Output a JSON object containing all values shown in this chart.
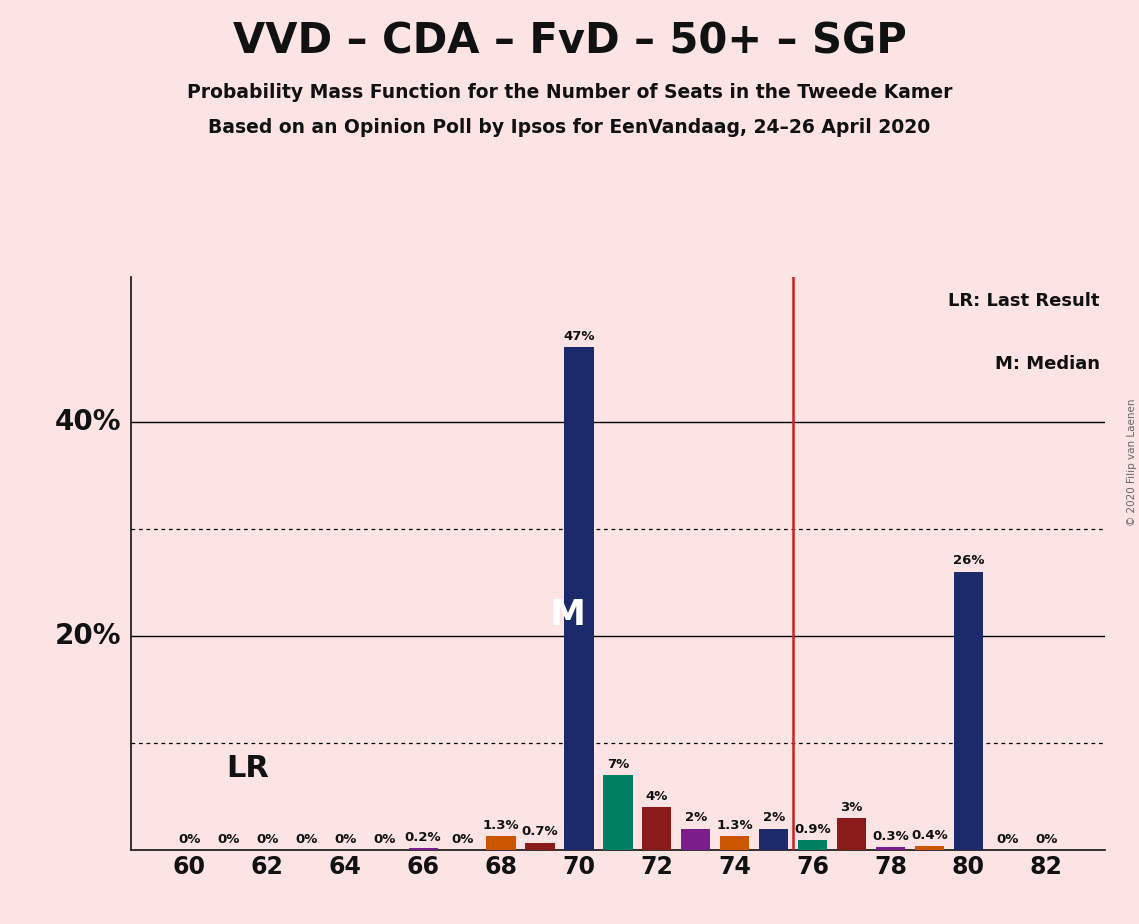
{
  "title": "VVD – CDA – FvD – 50+ – SGP",
  "subtitle1": "Probability Mass Function for the Number of Seats in the Tweede Kamer",
  "subtitle2": "Based on an Opinion Poll by Ipsos for EenVandaag, 24–26 April 2020",
  "copyright": "© 2020 Filip van Laenen",
  "legend_lr": "LR: Last Result",
  "legend_m": "M: Median",
  "background_color": "#fce4e4",
  "median": 70,
  "last_result": 75.5,
  "seats": [
    60,
    61,
    62,
    63,
    64,
    65,
    66,
    67,
    68,
    69,
    70,
    71,
    72,
    73,
    74,
    75,
    76,
    77,
    78,
    79,
    80,
    81,
    82
  ],
  "values": [
    0.0,
    0.0,
    0.0,
    0.0,
    0.0,
    0.0,
    0.002,
    0.0,
    0.013,
    0.007,
    0.47,
    0.07,
    0.04,
    0.02,
    0.013,
    0.02,
    0.009,
    0.03,
    0.003,
    0.004,
    0.26,
    0.0,
    0.0
  ],
  "bar_colors": [
    "#1c2a6b",
    "#1c2a6b",
    "#1c2a6b",
    "#1c2a6b",
    "#1c2a6b",
    "#1c2a6b",
    "#7b1e8b",
    "#1c2a6b",
    "#cc5500",
    "#8b1a1a",
    "#1c2a6b",
    "#008060",
    "#8b1a1a",
    "#7b1e8b",
    "#cc5500",
    "#1c2a6b",
    "#008060",
    "#8b1a1a",
    "#7b1e8b",
    "#cc5500",
    "#1c2a6b",
    "#1c2a6b",
    "#1c2a6b"
  ],
  "labels": [
    "0%",
    "0%",
    "0%",
    "0%",
    "0%",
    "0%",
    "0.2%",
    "0%",
    "1.3%",
    "0.7%",
    "47%",
    "7%",
    "4%",
    "2%",
    "1.3%",
    "2%",
    "0.9%",
    "3%",
    "0.3%",
    "0.4%",
    "26%",
    "0%",
    "0%"
  ],
  "xlim": [
    58.5,
    83.5
  ],
  "ylim": [
    0,
    0.535
  ],
  "dotted_yticks": [
    0.1,
    0.3
  ],
  "solid_yticks": [
    0.2,
    0.4
  ],
  "xticks": [
    60,
    62,
    64,
    66,
    68,
    70,
    72,
    74,
    76,
    78,
    80,
    82
  ],
  "bar_width": 0.75
}
